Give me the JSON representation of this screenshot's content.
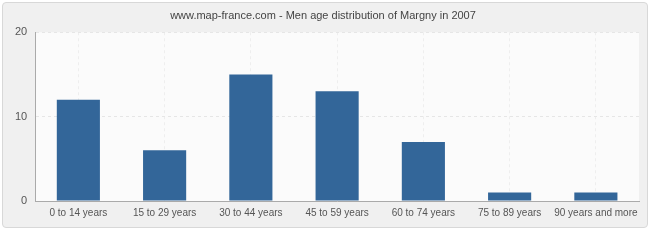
{
  "chart_data": {
    "type": "bar",
    "title": "www.map-france.com - Men age distribution of Margny in 2007",
    "categories": [
      "0 to 14 years",
      "15 to 29 years",
      "30 to 44 years",
      "45 to 59 years",
      "60 to 74 years",
      "75 to 89 years",
      "90 years and more"
    ],
    "values": [
      12,
      6,
      15,
      13,
      7,
      1,
      1
    ],
    "color": "#336699",
    "ylim": [
      0,
      20
    ],
    "yticks": [
      0,
      10,
      20
    ],
    "grid": true
  }
}
